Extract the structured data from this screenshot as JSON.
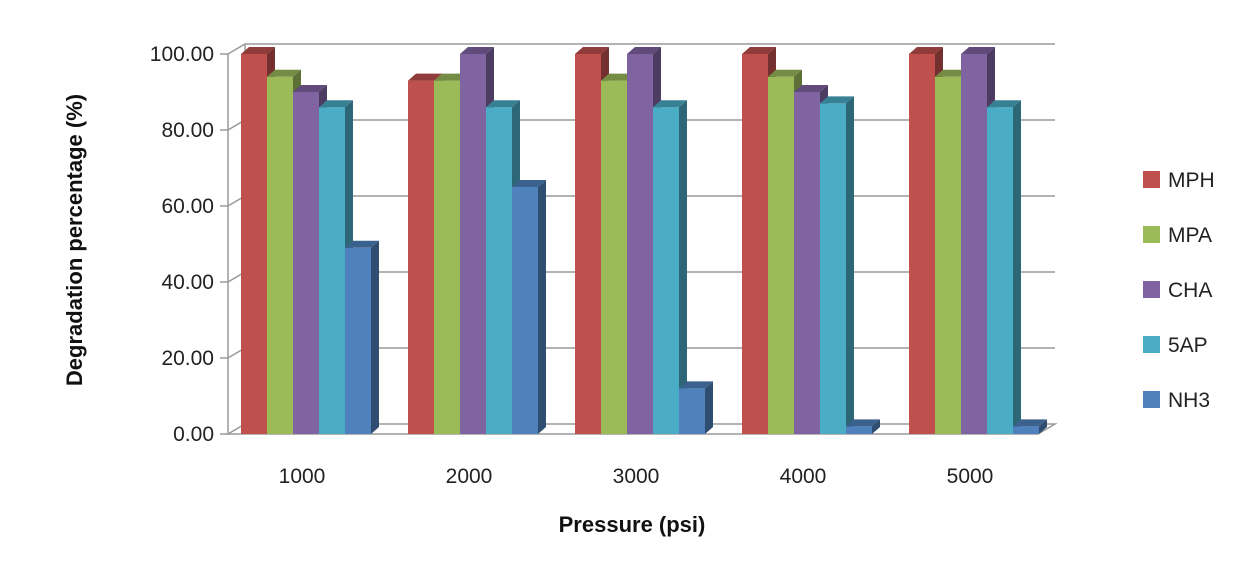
{
  "chart_data": {
    "type": "bar",
    "title": "",
    "xlabel": "Pressure (psi)",
    "ylabel": "Degradation percentage (%)",
    "ylim": [
      0,
      100
    ],
    "yticks": [
      "0.00",
      "20.00",
      "40.00",
      "60.00",
      "80.00",
      "100.00"
    ],
    "categories": [
      "1000",
      "2000",
      "3000",
      "4000",
      "5000"
    ],
    "grid": true,
    "legend_position": "right",
    "series": [
      {
        "name": "MPH",
        "color": "#c0504d",
        "values": [
          100,
          93,
          100,
          100,
          100
        ]
      },
      {
        "name": "MPA",
        "color": "#9bbb59",
        "values": [
          94,
          93,
          93,
          94,
          94
        ]
      },
      {
        "name": "CHA",
        "color": "#8064a2",
        "values": [
          90,
          100,
          100,
          90,
          100
        ]
      },
      {
        "name": "5AP",
        "color": "#4bacc6",
        "values": [
          86,
          86,
          86,
          87,
          86
        ]
      },
      {
        "name": "NH3",
        "color": "#4f81bd",
        "values": [
          49,
          65,
          12,
          2,
          2
        ]
      }
    ]
  }
}
